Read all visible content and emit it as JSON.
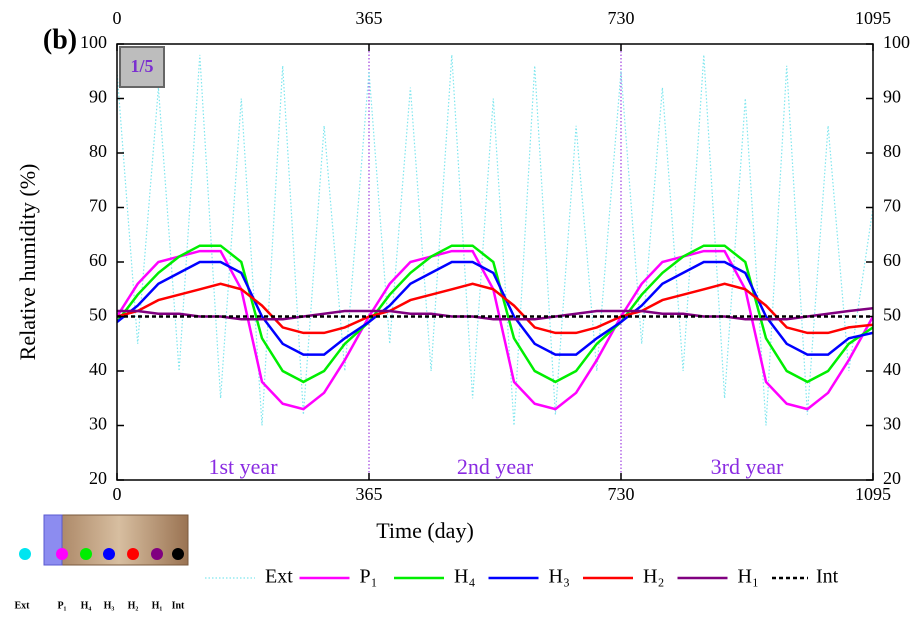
{
  "chart_data": {
    "type": "line",
    "xlabel": "Time (day)",
    "ylabel": "Relative humidity (%)",
    "panel_label": "(b)",
    "badge": "1/5",
    "annotations": [
      {
        "text": "1st year",
        "x": 182.5,
        "y": 22
      },
      {
        "text": "2nd year",
        "x": 547.5,
        "y": 22
      },
      {
        "text": "3rd year",
        "x": 912.5,
        "y": 22
      }
    ],
    "x": [
      0,
      30,
      60,
      90,
      120,
      150,
      180,
      210,
      240,
      270,
      300,
      330,
      365,
      395,
      425,
      455,
      485,
      515,
      545,
      575,
      605,
      635,
      665,
      695,
      730,
      760,
      790,
      820,
      850,
      880,
      910,
      940,
      970,
      1000,
      1030,
      1060,
      1095
    ],
    "xlim": [
      0,
      1095
    ],
    "xticks": [
      0,
      365,
      730,
      1095
    ],
    "ylim": [
      20,
      100
    ],
    "yticks": [
      20,
      30,
      40,
      50,
      60,
      70,
      80,
      90,
      100
    ],
    "series": [
      {
        "name": "Ext",
        "color": "#7fe6ee",
        "style": "dotted",
        "values": [
          95,
          45,
          92,
          40,
          98,
          35,
          90,
          30,
          96,
          32,
          85,
          40,
          95,
          45,
          92,
          40,
          98,
          35,
          90,
          30,
          96,
          32,
          85,
          40,
          95,
          45,
          92,
          40,
          98,
          35,
          90,
          30,
          96,
          32,
          85,
          40,
          70
        ]
      },
      {
        "name": "P₁",
        "color": "#ff00ff",
        "style": "solid",
        "values": [
          50,
          56,
          60,
          61,
          62,
          62,
          55,
          38,
          34,
          33,
          36,
          42,
          50,
          56,
          60,
          61,
          62,
          62,
          55,
          38,
          34,
          33,
          36,
          42,
          50,
          56,
          60,
          61,
          62,
          62,
          55,
          38,
          34,
          33,
          36,
          42,
          50
        ]
      },
      {
        "name": "H₄",
        "color": "#00ee00",
        "style": "solid",
        "values": [
          49,
          54,
          58,
          61,
          63,
          63,
          60,
          46,
          40,
          38,
          40,
          45,
          49,
          54,
          58,
          61,
          63,
          63,
          60,
          46,
          40,
          38,
          40,
          45,
          49,
          54,
          58,
          61,
          63,
          63,
          60,
          46,
          40,
          38,
          40,
          45,
          48
        ]
      },
      {
        "name": "H₃",
        "color": "#0000ff",
        "style": "solid",
        "values": [
          49,
          52,
          56,
          58,
          60,
          60,
          58,
          50,
          45,
          43,
          43,
          46,
          49,
          52,
          56,
          58,
          60,
          60,
          58,
          50,
          45,
          43,
          43,
          46,
          49,
          52,
          56,
          58,
          60,
          60,
          58,
          50,
          45,
          43,
          43,
          46,
          47
        ]
      },
      {
        "name": "H₂",
        "color": "#ff0000",
        "style": "solid",
        "values": [
          50,
          51,
          53,
          54,
          55,
          56,
          55,
          52,
          48,
          47,
          47,
          48,
          50,
          51,
          53,
          54,
          55,
          56,
          55,
          52,
          48,
          47,
          47,
          48,
          50,
          51,
          53,
          54,
          55,
          56,
          55,
          52,
          48,
          47,
          47,
          48,
          48.5
        ]
      },
      {
        "name": "H₁",
        "color": "#800080",
        "style": "solid",
        "values": [
          51,
          51,
          50.5,
          50.5,
          50,
          50,
          49.5,
          49.5,
          49.5,
          50,
          50.5,
          51,
          51,
          51,
          50.5,
          50.5,
          50,
          50,
          49.5,
          49.5,
          49.5,
          50,
          50.5,
          51,
          51,
          51,
          50.5,
          50.5,
          50,
          50,
          49.5,
          49.5,
          49.5,
          50,
          50.5,
          51,
          51.5
        ]
      },
      {
        "name": "Int",
        "color": "#000000",
        "style": "dashed",
        "values": [
          50,
          50,
          50,
          50,
          50,
          50,
          50,
          50,
          50,
          50,
          50,
          50,
          50,
          50,
          50,
          50,
          50,
          50,
          50,
          50,
          50,
          50,
          50,
          50,
          50,
          50,
          50,
          50,
          50,
          50,
          50,
          50,
          50,
          50,
          50,
          50,
          50
        ]
      }
    ]
  }
}
